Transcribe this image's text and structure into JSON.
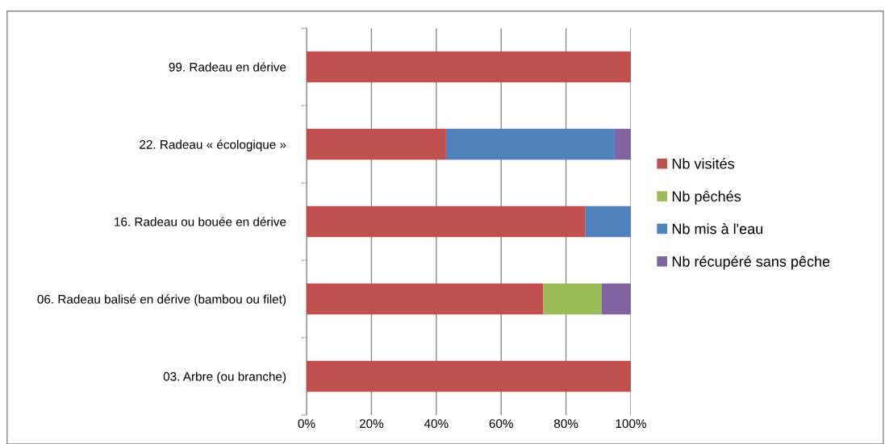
{
  "chart_data": {
    "type": "bar",
    "orientation": "horizontal",
    "stacked": true,
    "categories": [
      "99. Radeau en dérive",
      "22. Radeau « écologique »",
      "16. Radeau ou bouée en dérive",
      "06. Radeau balisé en dérive (bambou ou filet)",
      "03. Arbre (ou branche)"
    ],
    "series": [
      {
        "name": "Nb visités",
        "color": "#c0504d",
        "values": [
          100,
          43,
          86,
          73,
          100
        ]
      },
      {
        "name": "Nb pêchés",
        "color": "#9bbb59",
        "values": [
          0,
          0,
          0,
          18,
          0
        ]
      },
      {
        "name": "Nb mis à l'eau",
        "color": "#4f81bd",
        "values": [
          0,
          52,
          14,
          0,
          0
        ]
      },
      {
        "name": "Nb récupéré sans pêche",
        "color": "#8064a2",
        "values": [
          0,
          5,
          0,
          9,
          0
        ]
      }
    ],
    "xlim": [
      0,
      100
    ],
    "xticks": [
      {
        "value": 0,
        "label": "0%"
      },
      {
        "value": 20,
        "label": "20%"
      },
      {
        "value": 40,
        "label": "40%"
      },
      {
        "value": 60,
        "label": "60%"
      },
      {
        "value": 80,
        "label": "80%"
      },
      {
        "value": 100,
        "label": "100%"
      }
    ],
    "grid": "x",
    "legend": "right"
  }
}
